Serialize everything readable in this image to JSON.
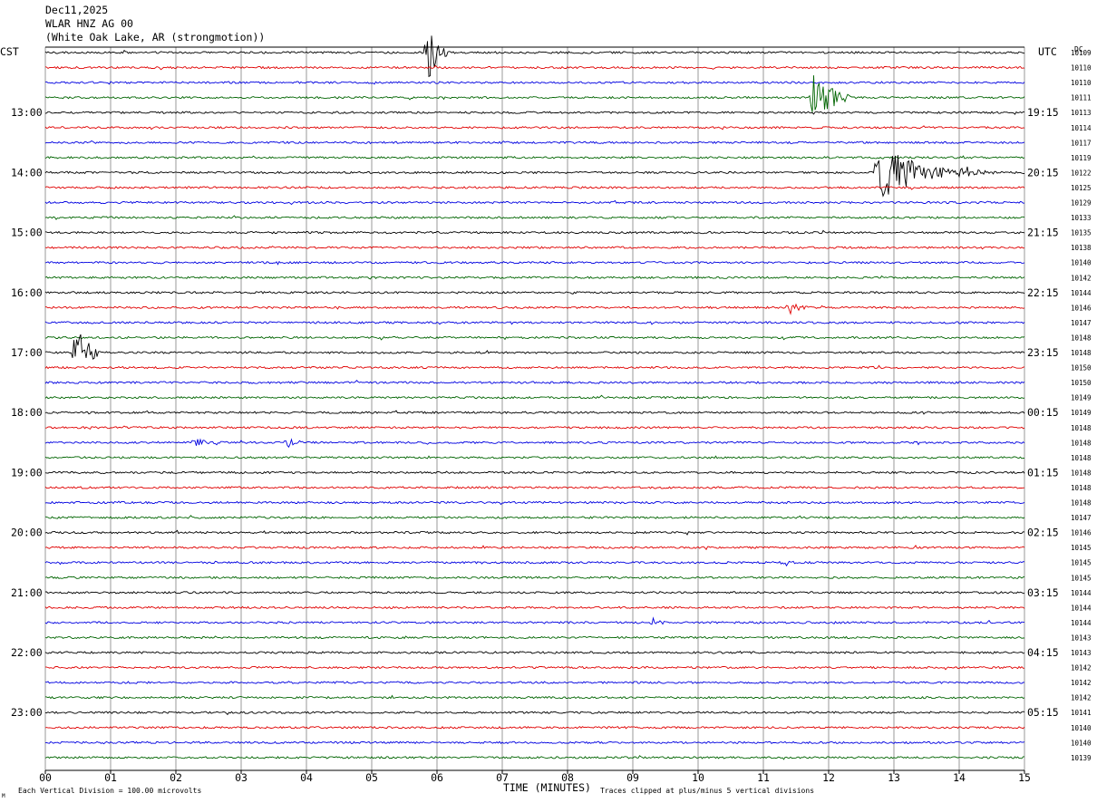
{
  "header": {
    "date": "Dec11,2025",
    "station": "WLAR HNZ AG 00",
    "location": "(White Oak Lake, AR (strongmotion))"
  },
  "labels": {
    "left_tz": "CST",
    "right_tz": "UTC",
    "dc_header": "DC"
  },
  "footer": {
    "xlabel": "TIME (MINUTES)",
    "scale_note": "Each Vertical Division =  100.00 microvolts",
    "clip_note": "Traces clipped at plus/minus 5 vertical divisions",
    "corner_mark": "M"
  },
  "colors": {
    "trace_cycle": [
      "#000000",
      "#e00000",
      "#0000e0",
      "#006400"
    ],
    "grid": "#808080",
    "background": "#ffffff"
  },
  "chart_data": {
    "type": "line",
    "title": "",
    "xlabel": "TIME (MINUTES)",
    "xlim": [
      0,
      15
    ],
    "x_ticks": [
      "00",
      "01",
      "02",
      "03",
      "04",
      "05",
      "06",
      "07",
      "08",
      "09",
      "10",
      "11",
      "12",
      "13",
      "14",
      "15"
    ],
    "grid": true,
    "row_minutes": 15,
    "num_rows": 48,
    "left_hour_labels": [
      {
        "row": 4,
        "text": "13:00"
      },
      {
        "row": 8,
        "text": "14:00"
      },
      {
        "row": 12,
        "text": "15:00"
      },
      {
        "row": 16,
        "text": "16:00"
      },
      {
        "row": 20,
        "text": "17:00"
      },
      {
        "row": 24,
        "text": "18:00"
      },
      {
        "row": 28,
        "text": "19:00"
      },
      {
        "row": 32,
        "text": "20:00"
      },
      {
        "row": 36,
        "text": "21:00"
      },
      {
        "row": 40,
        "text": "22:00"
      },
      {
        "row": 44,
        "text": "23:00"
      }
    ],
    "right_hour_labels": [
      {
        "row": 4,
        "text": "19:15"
      },
      {
        "row": 8,
        "text": "20:15"
      },
      {
        "row": 12,
        "text": "21:15"
      },
      {
        "row": 16,
        "text": "22:15"
      },
      {
        "row": 20,
        "text": "23:15"
      },
      {
        "row": 24,
        "text": "00:15"
      },
      {
        "row": 28,
        "text": "01:15"
      },
      {
        "row": 32,
        "text": "02:15"
      },
      {
        "row": 36,
        "text": "03:15"
      },
      {
        "row": 40,
        "text": "04:15"
      },
      {
        "row": 44,
        "text": "05:15"
      }
    ],
    "dc_offsets": [
      "10109",
      "10110",
      "10110",
      "10111",
      "10113",
      "10114",
      "10117",
      "10119",
      "10122",
      "10125",
      "10129",
      "10133",
      "10135",
      "10138",
      "10140",
      "10142",
      "10144",
      "10146",
      "10147",
      "10148",
      "10148",
      "10150",
      "10150",
      "10149",
      "10149",
      "10148",
      "10148",
      "10148",
      "10148",
      "10148",
      "10148",
      "10147",
      "10146",
      "10145",
      "10145",
      "10145",
      "10144",
      "10144",
      "10144",
      "10143",
      "10143",
      "10142",
      "10142",
      "10142",
      "10141",
      "10140",
      "10140",
      "10139"
    ],
    "events": [
      {
        "row": 0,
        "minute": 5.85,
        "amplitude": 5,
        "duration_min": 0.35
      },
      {
        "row": 3,
        "minute": 11.75,
        "amplitude": 5,
        "duration_min": 0.6
      },
      {
        "row": 8,
        "minute": 12.75,
        "amplitude": 5,
        "duration_min": 1.2
      },
      {
        "row": 8,
        "minute": 14.0,
        "amplitude": 1.5,
        "duration_min": 0.6
      },
      {
        "row": 20,
        "minute": 0.45,
        "amplitude": 5,
        "duration_min": 0.4
      },
      {
        "row": 17,
        "minute": 11.4,
        "amplitude": 1.2,
        "duration_min": 0.4
      },
      {
        "row": 26,
        "minute": 2.3,
        "amplitude": 1.0,
        "duration_min": 0.3
      },
      {
        "row": 26,
        "minute": 3.7,
        "amplitude": 1.0,
        "duration_min": 0.4
      },
      {
        "row": 38,
        "minute": 9.3,
        "amplitude": 0.8,
        "duration_min": 0.3
      },
      {
        "row": 34,
        "minute": 11.3,
        "amplitude": 0.8,
        "duration_min": 0.3
      }
    ]
  }
}
